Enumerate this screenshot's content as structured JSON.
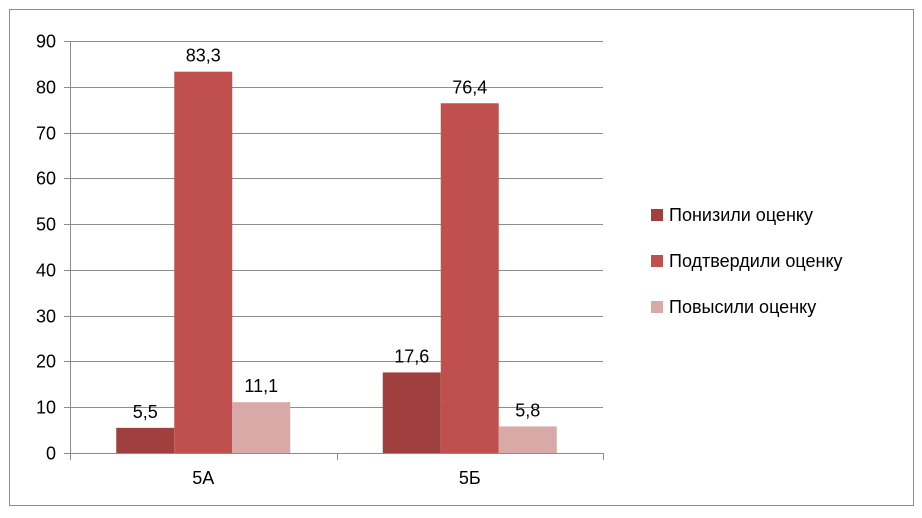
{
  "chart_data": {
    "type": "bar",
    "title": "",
    "xlabel": "",
    "ylabel": "",
    "categories": [
      "5А",
      "5Б"
    ],
    "series": [
      {
        "name": "Понизили оценку",
        "values": [
          5.5,
          17.6
        ],
        "labels": [
          "5,5",
          "17,6"
        ],
        "color": "#a0403e"
      },
      {
        "name": "Подтвердили оценку",
        "values": [
          83.3,
          76.4
        ],
        "labels": [
          "83,3",
          "76,4"
        ],
        "color": "#c0504d"
      },
      {
        "name": "Повысили оценку",
        "values": [
          11.1,
          5.8
        ],
        "labels": [
          "11,1",
          "5,8"
        ],
        "color": "#d9a9a8"
      }
    ],
    "ylim": [
      0,
      90
    ],
    "yticks": [
      0,
      10,
      20,
      30,
      40,
      50,
      60,
      70,
      80,
      90
    ],
    "ytick_labels": [
      "0",
      "10",
      "20",
      "30",
      "40",
      "50",
      "60",
      "70",
      "80",
      "90"
    ],
    "grid": true,
    "legend_position": "right"
  }
}
